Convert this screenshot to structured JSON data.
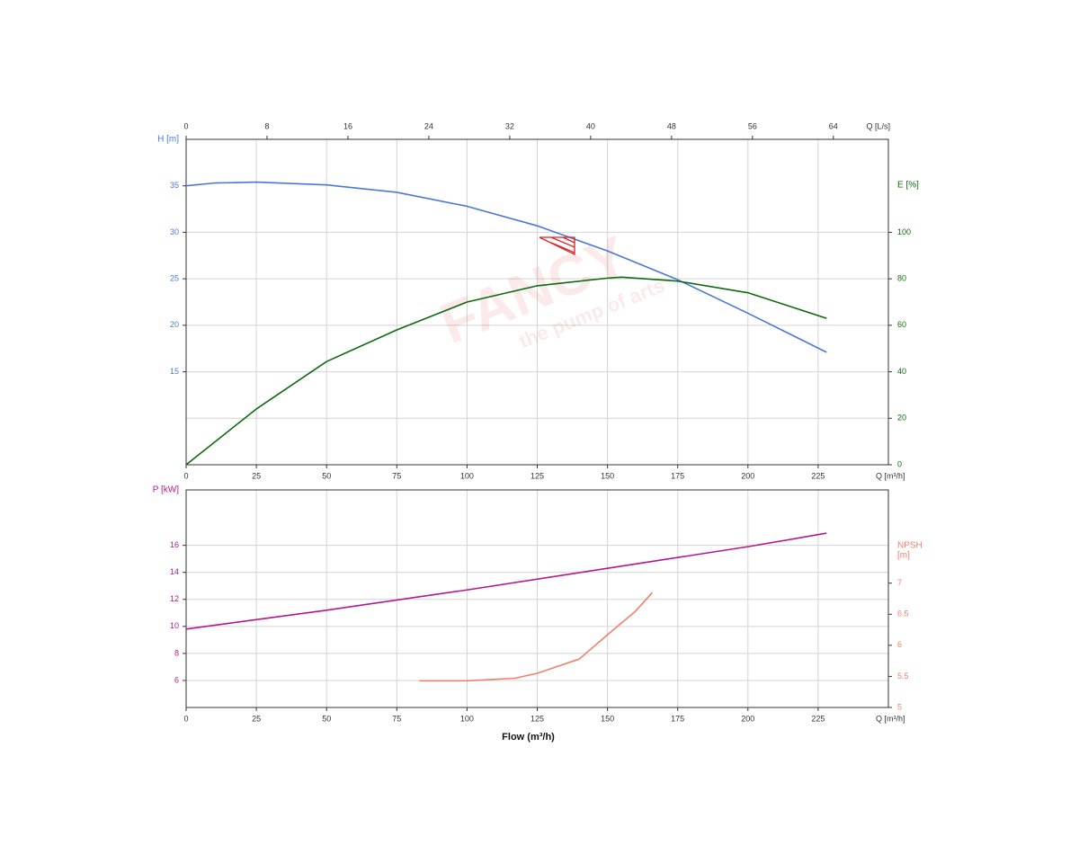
{
  "chart_data": [
    {
      "type": "line",
      "xlabel": "Q [m³/h]",
      "xlim": [
        0,
        250
      ],
      "xticks": [
        0,
        25,
        50,
        75,
        100,
        125,
        150,
        175,
        200,
        225
      ],
      "x2label": "Q [L/s]",
      "x2lim": [
        0,
        69.44
      ],
      "x2ticks": [
        0,
        8,
        16,
        24,
        32,
        40,
        48,
        56,
        64
      ],
      "ylabel": "H [m]",
      "ylim": [
        5,
        40
      ],
      "yticks": [
        15,
        20,
        25,
        30,
        35
      ],
      "y2label": "E [%]",
      "y2lim": [
        0,
        140
      ],
      "y2ticks": [
        0,
        20,
        40,
        60,
        80,
        100
      ],
      "grid": true,
      "watermark": [
        "FANCY",
        "the pump of arts"
      ],
      "series": [
        {
          "color": "#4a78d8",
          "axis": "y",
          "x": [
            0,
            10,
            25,
            50,
            75,
            100,
            125,
            150,
            175,
            200,
            228
          ],
          "values": [
            35,
            35.3,
            35.4,
            35.1,
            34.3,
            32.8,
            30.7,
            28.0,
            24.9,
            21.3,
            17.1
          ]
        },
        {
          "color": "#0d6b0d",
          "axis": "y2",
          "x": [
            0,
            25,
            50,
            75,
            100,
            125,
            150,
            155,
            175,
            200,
            228
          ],
          "values": [
            0,
            24,
            44.4,
            58,
            70,
            77,
            80.3,
            80.7,
            79,
            74,
            63
          ]
        }
      ]
    },
    {
      "type": "line",
      "xlabel": "Q [m³/h]",
      "xtitle": "Flow (m³/h)",
      "xlim": [
        0,
        250
      ],
      "xticks": [
        0,
        25,
        50,
        75,
        100,
        125,
        150,
        175,
        200,
        225
      ],
      "ylabel": "P [kW]",
      "ylim": [
        4,
        20.1
      ],
      "yticks": [
        6,
        8,
        10,
        12,
        14,
        16
      ],
      "y2label": [
        "NPSH",
        "[m]"
      ],
      "y2lim": [
        5,
        8.5
      ],
      "y2ticks": [
        5,
        5.5,
        6,
        6.5,
        7
      ],
      "grid": true,
      "series": [
        {
          "color": "#b5178a",
          "axis": "y",
          "x": [
            0,
            50,
            100,
            150,
            200,
            228
          ],
          "values": [
            9.8,
            11.2,
            12.7,
            14.3,
            15.9,
            16.9
          ]
        },
        {
          "color": "#f0806e",
          "axis": "y2",
          "x": [
            83,
            100,
            117,
            125,
            140,
            150,
            160,
            166
          ],
          "values": [
            5.43,
            5.43,
            5.47,
            5.55,
            5.78,
            6.17,
            6.55,
            6.85
          ]
        }
      ]
    }
  ]
}
